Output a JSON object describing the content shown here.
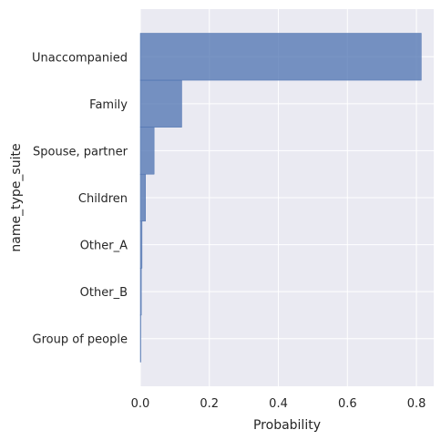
{
  "chart_data": {
    "type": "bar",
    "orientation": "horizontal",
    "categories": [
      "Unaccompanied",
      "Family",
      "Spouse, partner",
      "Children",
      "Other_A",
      "Other_B",
      "Group of people"
    ],
    "values": [
      0.814,
      0.12,
      0.04,
      0.015,
      0.005,
      0.003,
      0.001
    ],
    "xlabel": "Probability",
    "ylabel": "name_type_suite",
    "xlim": [
      0,
      0.85
    ],
    "xticks": [
      "0.0",
      "0.2",
      "0.4",
      "0.6",
      "0.8"
    ],
    "grid": true,
    "colors": {
      "bar_fill": "#4c72b0",
      "bar_stroke": "#4c72b0",
      "plot_background": "#eaeaf2",
      "grid": "#ffffff",
      "text": "#262626"
    }
  }
}
